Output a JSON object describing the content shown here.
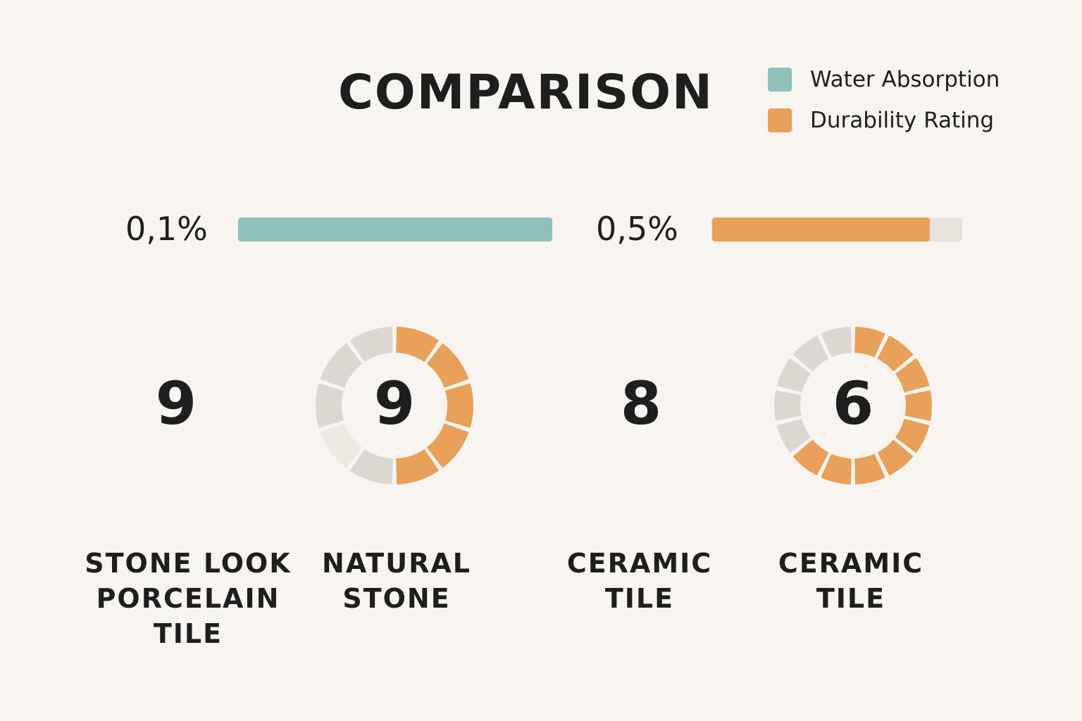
{
  "title": "COMPARISON",
  "legend": [
    {
      "label": "Water Absorption",
      "color": "#8fc0bc"
    },
    {
      "label": "Durability Rating",
      "color": "#e9a05a"
    }
  ],
  "colors": {
    "track": "#e7e2dc",
    "segment_inactive": "#dcd8d1",
    "segment_inactive_light": "#ece8e2",
    "text": "#1e1e1e",
    "background": "#f8f4ef"
  },
  "chart_data": [
    {
      "type": "bar",
      "series": [
        {
          "name": "Water Absorption",
          "value_label": "0,1%",
          "fill_fraction": 1.0
        },
        {
          "name": "Durability Rating",
          "value_label": "0,5%",
          "fill_fraction": 0.87
        }
      ]
    },
    {
      "type": "pie",
      "max": 10,
      "categories": [
        "STONE LOOK\nPORCELAIN\nTILE",
        "NATURAL\nSTONE",
        "CERAMIC\nTILE",
        "CERAMIC\nTILE"
      ],
      "values": [
        9,
        9,
        8,
        6
      ],
      "donut_filled_segments": [
        null,
        5,
        null,
        9
      ]
    }
  ]
}
